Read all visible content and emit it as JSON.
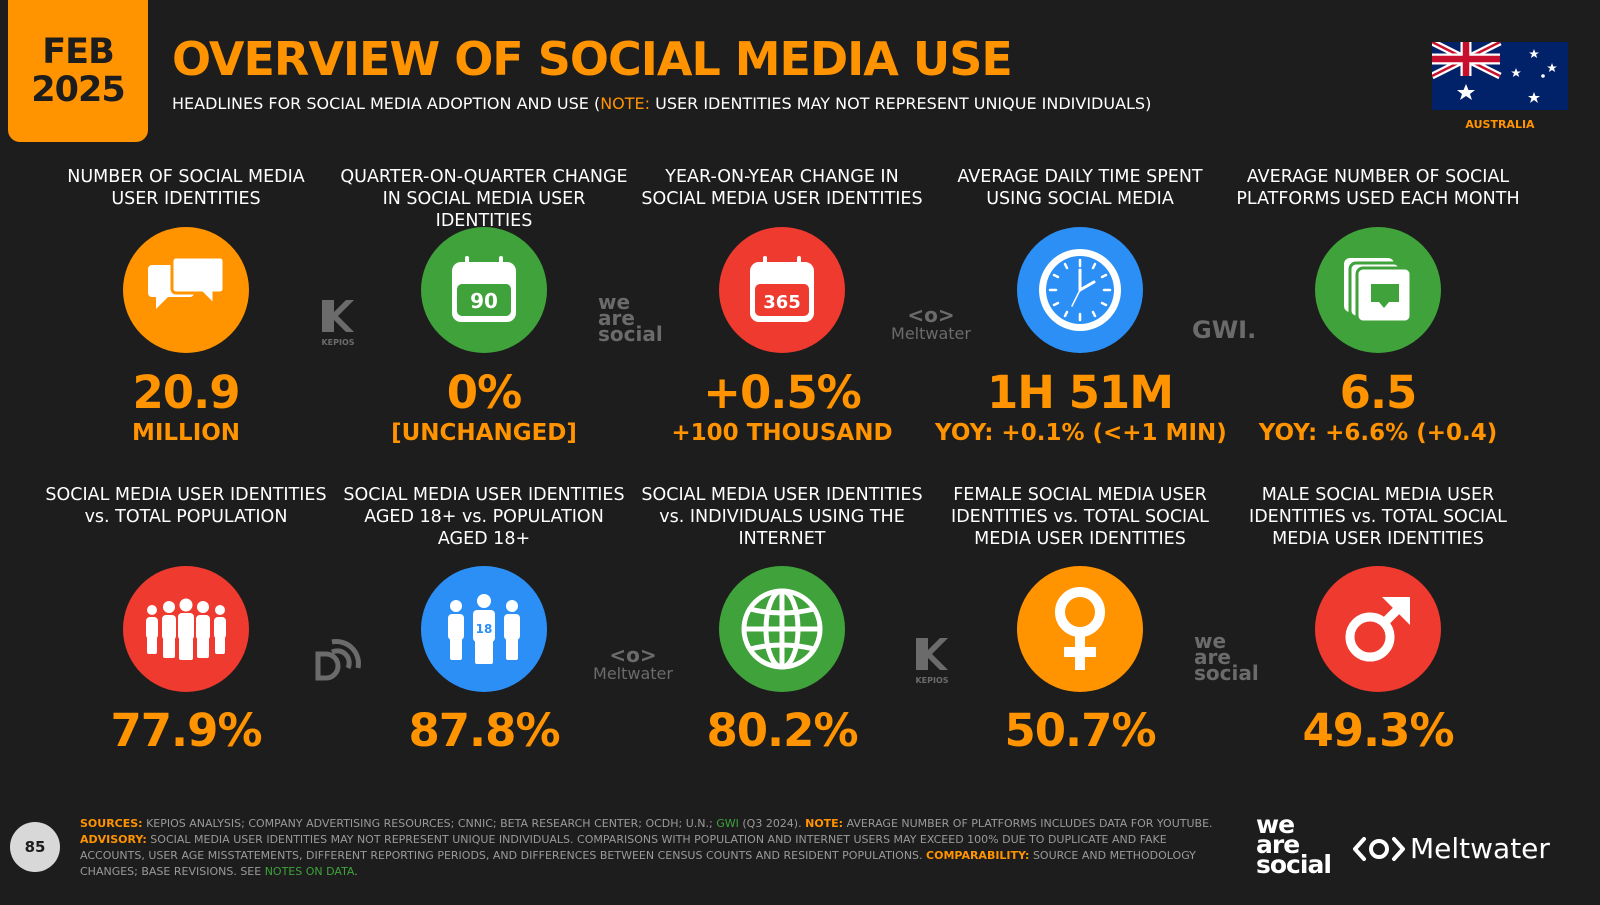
{
  "header": {
    "month": "FEB",
    "year": "2025",
    "title": "OVERVIEW OF SOCIAL MEDIA USE",
    "subtitle_pre": "HEADLINES FOR SOCIAL MEDIA ADOPTION AND USE (",
    "subtitle_note": "NOTE:",
    "subtitle_post": " USER IDENTITIES MAY NOT REPRESENT UNIQUE INDIVIDUALS)",
    "country": "AUSTRALIA"
  },
  "row1": [
    {
      "label": "NUMBER OF SOCIAL MEDIA USER IDENTITIES",
      "value": "20.9",
      "sub": "MILLION",
      "icon": "chat-bubbles-icon",
      "color": "#ff9300"
    },
    {
      "label": "QUARTER-ON-QUARTER CHANGE IN SOCIAL MEDIA USER IDENTITIES",
      "value": "0%",
      "sub": "[UNCHANGED]",
      "icon": "calendar-90-icon",
      "icon_text": "90",
      "color": "#3fa23a"
    },
    {
      "label": "YEAR-ON-YEAR CHANGE IN SOCIAL MEDIA USER IDENTITIES",
      "value": "+0.5%",
      "sub": "+100 THOUSAND",
      "icon": "calendar-365-icon",
      "icon_text": "365",
      "color": "#ee3a2f"
    },
    {
      "label": "AVERAGE DAILY TIME SPENT USING SOCIAL MEDIA",
      "value": "1H 51M",
      "sub": "YOY: +0.1% (<+1 MIN)",
      "icon": "clock-icon",
      "color": "#2c8ff5"
    },
    {
      "label": "AVERAGE NUMBER OF SOCIAL PLATFORMS USED EACH MONTH",
      "value": "6.5",
      "sub": "YOY: +6.6% (+0.4)",
      "icon": "stacked-cards-icon",
      "color": "#3fa23a"
    }
  ],
  "row2": [
    {
      "label": "SOCIAL MEDIA USER IDENTITIES vs. TOTAL POPULATION",
      "value": "77.9%",
      "icon": "people-group-icon",
      "color": "#ee3a2f"
    },
    {
      "label": "SOCIAL MEDIA USER IDENTITIES AGED 18+ vs. POPULATION AGED 18+",
      "value": "87.8%",
      "icon": "adults-18-icon",
      "icon_text": "18",
      "color": "#2c8ff5"
    },
    {
      "label": "SOCIAL MEDIA USER IDENTITIES vs. INDIVIDUALS USING THE INTERNET",
      "value": "80.2%",
      "icon": "globe-icon",
      "color": "#3fa23a"
    },
    {
      "label": "FEMALE SOCIAL MEDIA USER IDENTITIES vs. TOTAL SOCIAL MEDIA USER IDENTITIES",
      "value": "50.7%",
      "icon": "female-symbol-icon",
      "color": "#ff9300"
    },
    {
      "label": "MALE SOCIAL MEDIA USER IDENTITIES vs. TOTAL SOCIAL MEDIA USER IDENTITIES",
      "value": "49.3%",
      "icon": "male-symbol-icon",
      "color": "#ee3a2f"
    }
  ],
  "partners": {
    "kepios": "KEPIOS",
    "was1": "we",
    "was2": "are",
    "was3": "social",
    "meltwater": "Meltwater",
    "gwi": "GWI."
  },
  "footer": {
    "sources_label": "SOURCES:",
    "sources_text": " KEPIOS ANALYSIS; COMPANY ADVERTISING RESOURCES; CNNIC; BETA RESEARCH CENTER; OCDH; U.N.; ",
    "gwi": "GWI",
    "gwi_text": " (Q3 2024). ",
    "note_label": "NOTE:",
    "note_text": " AVERAGE NUMBER OF PLATFORMS INCLUDES DATA FOR YOUTUBE.",
    "advisory_label": "ADVISORY:",
    "advisory_text": " SOCIAL MEDIA USER IDENTITIES MAY NOT REPRESENT UNIQUE INDIVIDUALS. COMPARISONS WITH POPULATION AND INTERNET USERS MAY EXCEED 100% DUE TO DUPLICATE AND FAKE ACCOUNTS, USER AGE MISSTATEMENTS, DIFFERENT REPORTING PERIODS, AND DIFFERENCES BETWEEN CENSUS COUNTS AND RESIDENT POPULATIONS. ",
    "comparability_label": "COMPARABILITY:",
    "comparability_text": " SOURCE AND METHODOLOGY CHANGES; BASE REVISIONS. SEE ",
    "notes_link": "NOTES ON DATA",
    "end": "."
  },
  "page_number": "85",
  "brands": {
    "was_line1": "we",
    "was_line2": "are",
    "was_line3": "social",
    "meltwater": "Meltwater"
  }
}
